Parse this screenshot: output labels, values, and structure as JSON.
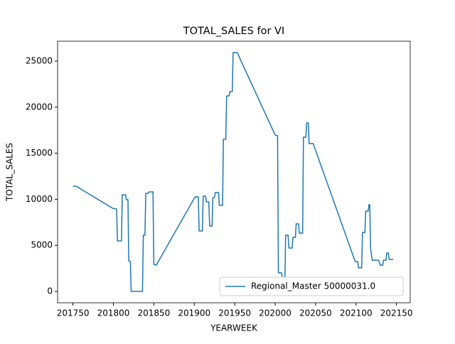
{
  "chart_data": {
    "type": "line",
    "title": "TOTAL_SALES for VI",
    "x_label": "YEARWEEK",
    "y_label": "TOTAL_SALES",
    "xlim": [
      201731,
      202167
    ],
    "ylim": [
      -1235,
      27160
    ],
    "xticks": [
      201750,
      201800,
      201850,
      201900,
      201950,
      202000,
      202050,
      202100,
      202150
    ],
    "yticks": [
      0,
      5000,
      10000,
      15000,
      20000,
      25000
    ],
    "legend": "lower right",
    "grid": false,
    "series": [
      {
        "name": "Regional_Master 50000031.0",
        "color": "#1f77b4",
        "x": [
          201750,
          201754,
          201799,
          201804,
          201805,
          201810,
          201811,
          201815,
          201816,
          201818,
          201819,
          201821,
          201822,
          201836,
          201837,
          201839,
          201840,
          201843,
          201844,
          201849,
          201850,
          201853,
          201901,
          201905,
          201906,
          201910,
          201911,
          201914,
          201915,
          201918,
          201919,
          201922,
          201923,
          201925,
          201926,
          201930,
          201931,
          201935,
          201936,
          201939,
          201940,
          201943,
          201944,
          201947,
          201948,
          201953,
          202000,
          202003,
          202004,
          202008,
          202009,
          202012,
          202013,
          202016,
          202017,
          202021,
          202022,
          202025,
          202026,
          202029,
          202030,
          202034,
          202035,
          202038,
          202039,
          202041,
          202042,
          202047,
          202099,
          202102,
          202103,
          202107,
          202108,
          202111,
          202112,
          202115,
          202116,
          202117,
          202118,
          202120,
          202128,
          202130,
          202133,
          202134,
          202137,
          202138,
          202140,
          202141,
          202146
        ],
        "values": [
          11420,
          11420,
          9030,
          8950,
          5480,
          5480,
          10490,
          10490,
          9950,
          9950,
          3320,
          3240,
          0,
          0,
          6100,
          6100,
          10650,
          10650,
          10800,
          10800,
          2930,
          2850,
          10260,
          10260,
          6560,
          6560,
          10340,
          10340,
          9720,
          9720,
          7100,
          7100,
          10190,
          10190,
          10730,
          10730,
          9340,
          9340,
          16510,
          16510,
          21220,
          21220,
          21680,
          21680,
          25930,
          25930,
          16980,
          16900,
          2010,
          2010,
          1310,
          1310,
          6100,
          6100,
          4710,
          4710,
          5860,
          5860,
          7330,
          7330,
          6330,
          6330,
          16740,
          16740,
          18290,
          18290,
          16050,
          16050,
          3240,
          3240,
          2550,
          2550,
          6400,
          6400,
          8720,
          8720,
          9410,
          9410,
          4630,
          3390,
          3390,
          2850,
          2850,
          3390,
          3390,
          4170,
          4170,
          3470,
          3470
        ]
      }
    ]
  }
}
